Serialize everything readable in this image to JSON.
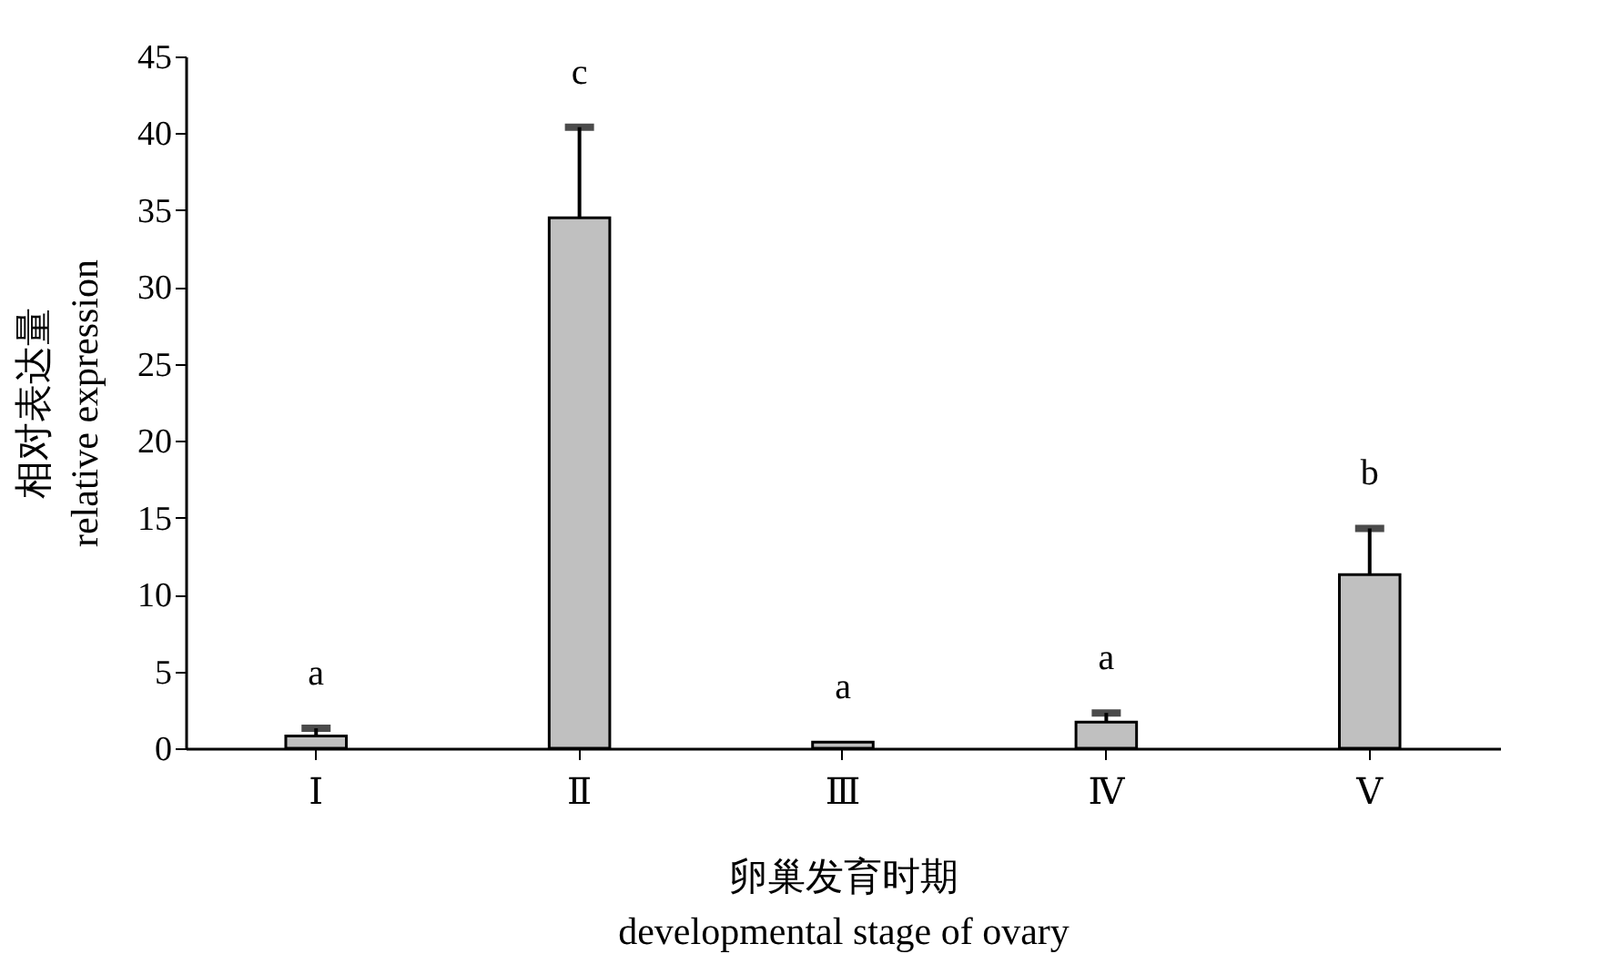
{
  "chart_data": {
    "type": "bar",
    "xlabel": "卵巢发育时期\ndevelopmental stage of ovary",
    "ylabel": "相对表达量\nrelative expression",
    "categories": [
      "Ⅰ",
      "Ⅱ",
      "Ⅲ",
      "Ⅳ",
      "Ⅴ"
    ],
    "series": [
      {
        "color": "#c0c0c0",
        "values": [
          0.8,
          34.5,
          0.4,
          1.7,
          11.3
        ],
        "errors": [
          [
            0.8,
            1.3
          ],
          [
            34.5,
            40.4
          ],
          null,
          [
            1.7,
            2.3
          ],
          [
            11.3,
            14.3
          ]
        ]
      }
    ],
    "ylim": [
      0,
      45
    ],
    "yticks": [
      0,
      5,
      10,
      15,
      20,
      25,
      30,
      35,
      40,
      45
    ],
    "grid": false,
    "annotations": [
      "a",
      "c",
      "a",
      "a",
      "b"
    ]
  }
}
